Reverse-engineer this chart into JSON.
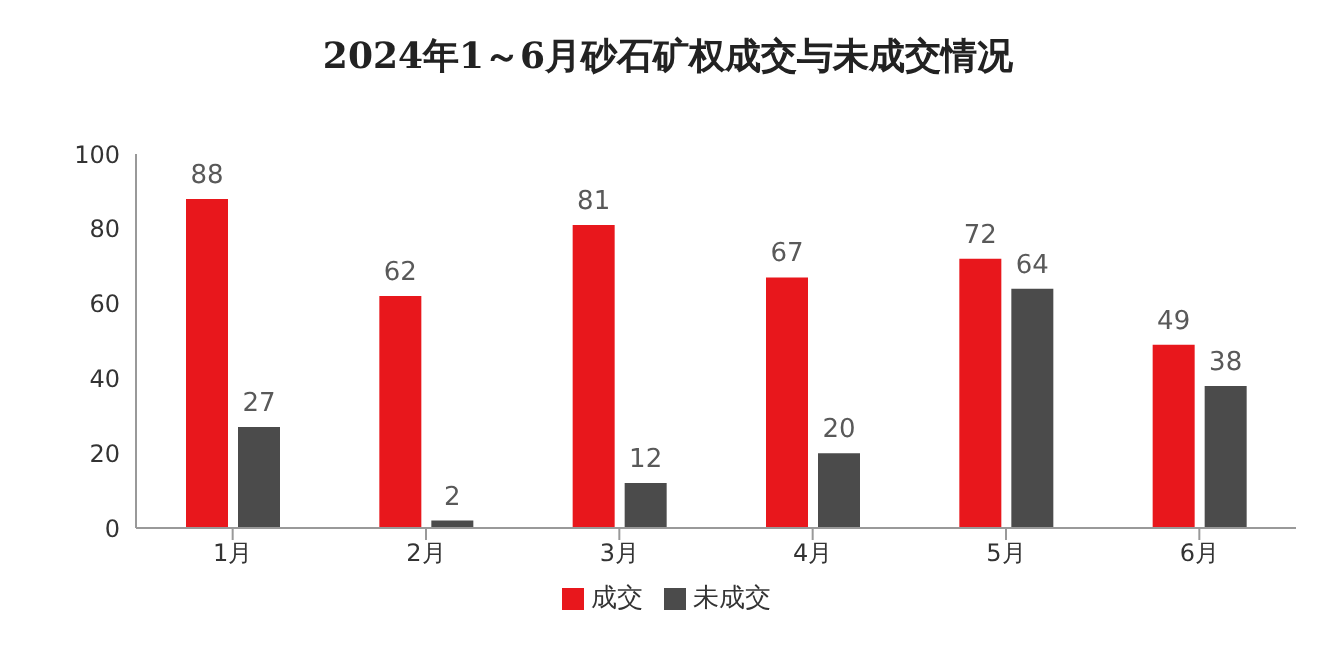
{
  "chart_data": {
    "type": "bar",
    "title": "2024年1～6月砂石矿权成交与未成交情况",
    "categories": [
      "1月",
      "2月",
      "3月",
      "4月",
      "5月",
      "6月"
    ],
    "series": [
      {
        "name": "成交",
        "color": "#e8171c",
        "values": [
          88,
          62,
          81,
          67,
          72,
          49
        ]
      },
      {
        "name": "未成交",
        "color": "#4b4b4b",
        "values": [
          27,
          2,
          12,
          20,
          64,
          38
        ]
      }
    ],
    "ylim": [
      0,
      100
    ],
    "yticks": [
      0,
      20,
      40,
      60,
      80,
      100
    ],
    "grid": false,
    "legend": "bottom",
    "data_labels": true
  }
}
